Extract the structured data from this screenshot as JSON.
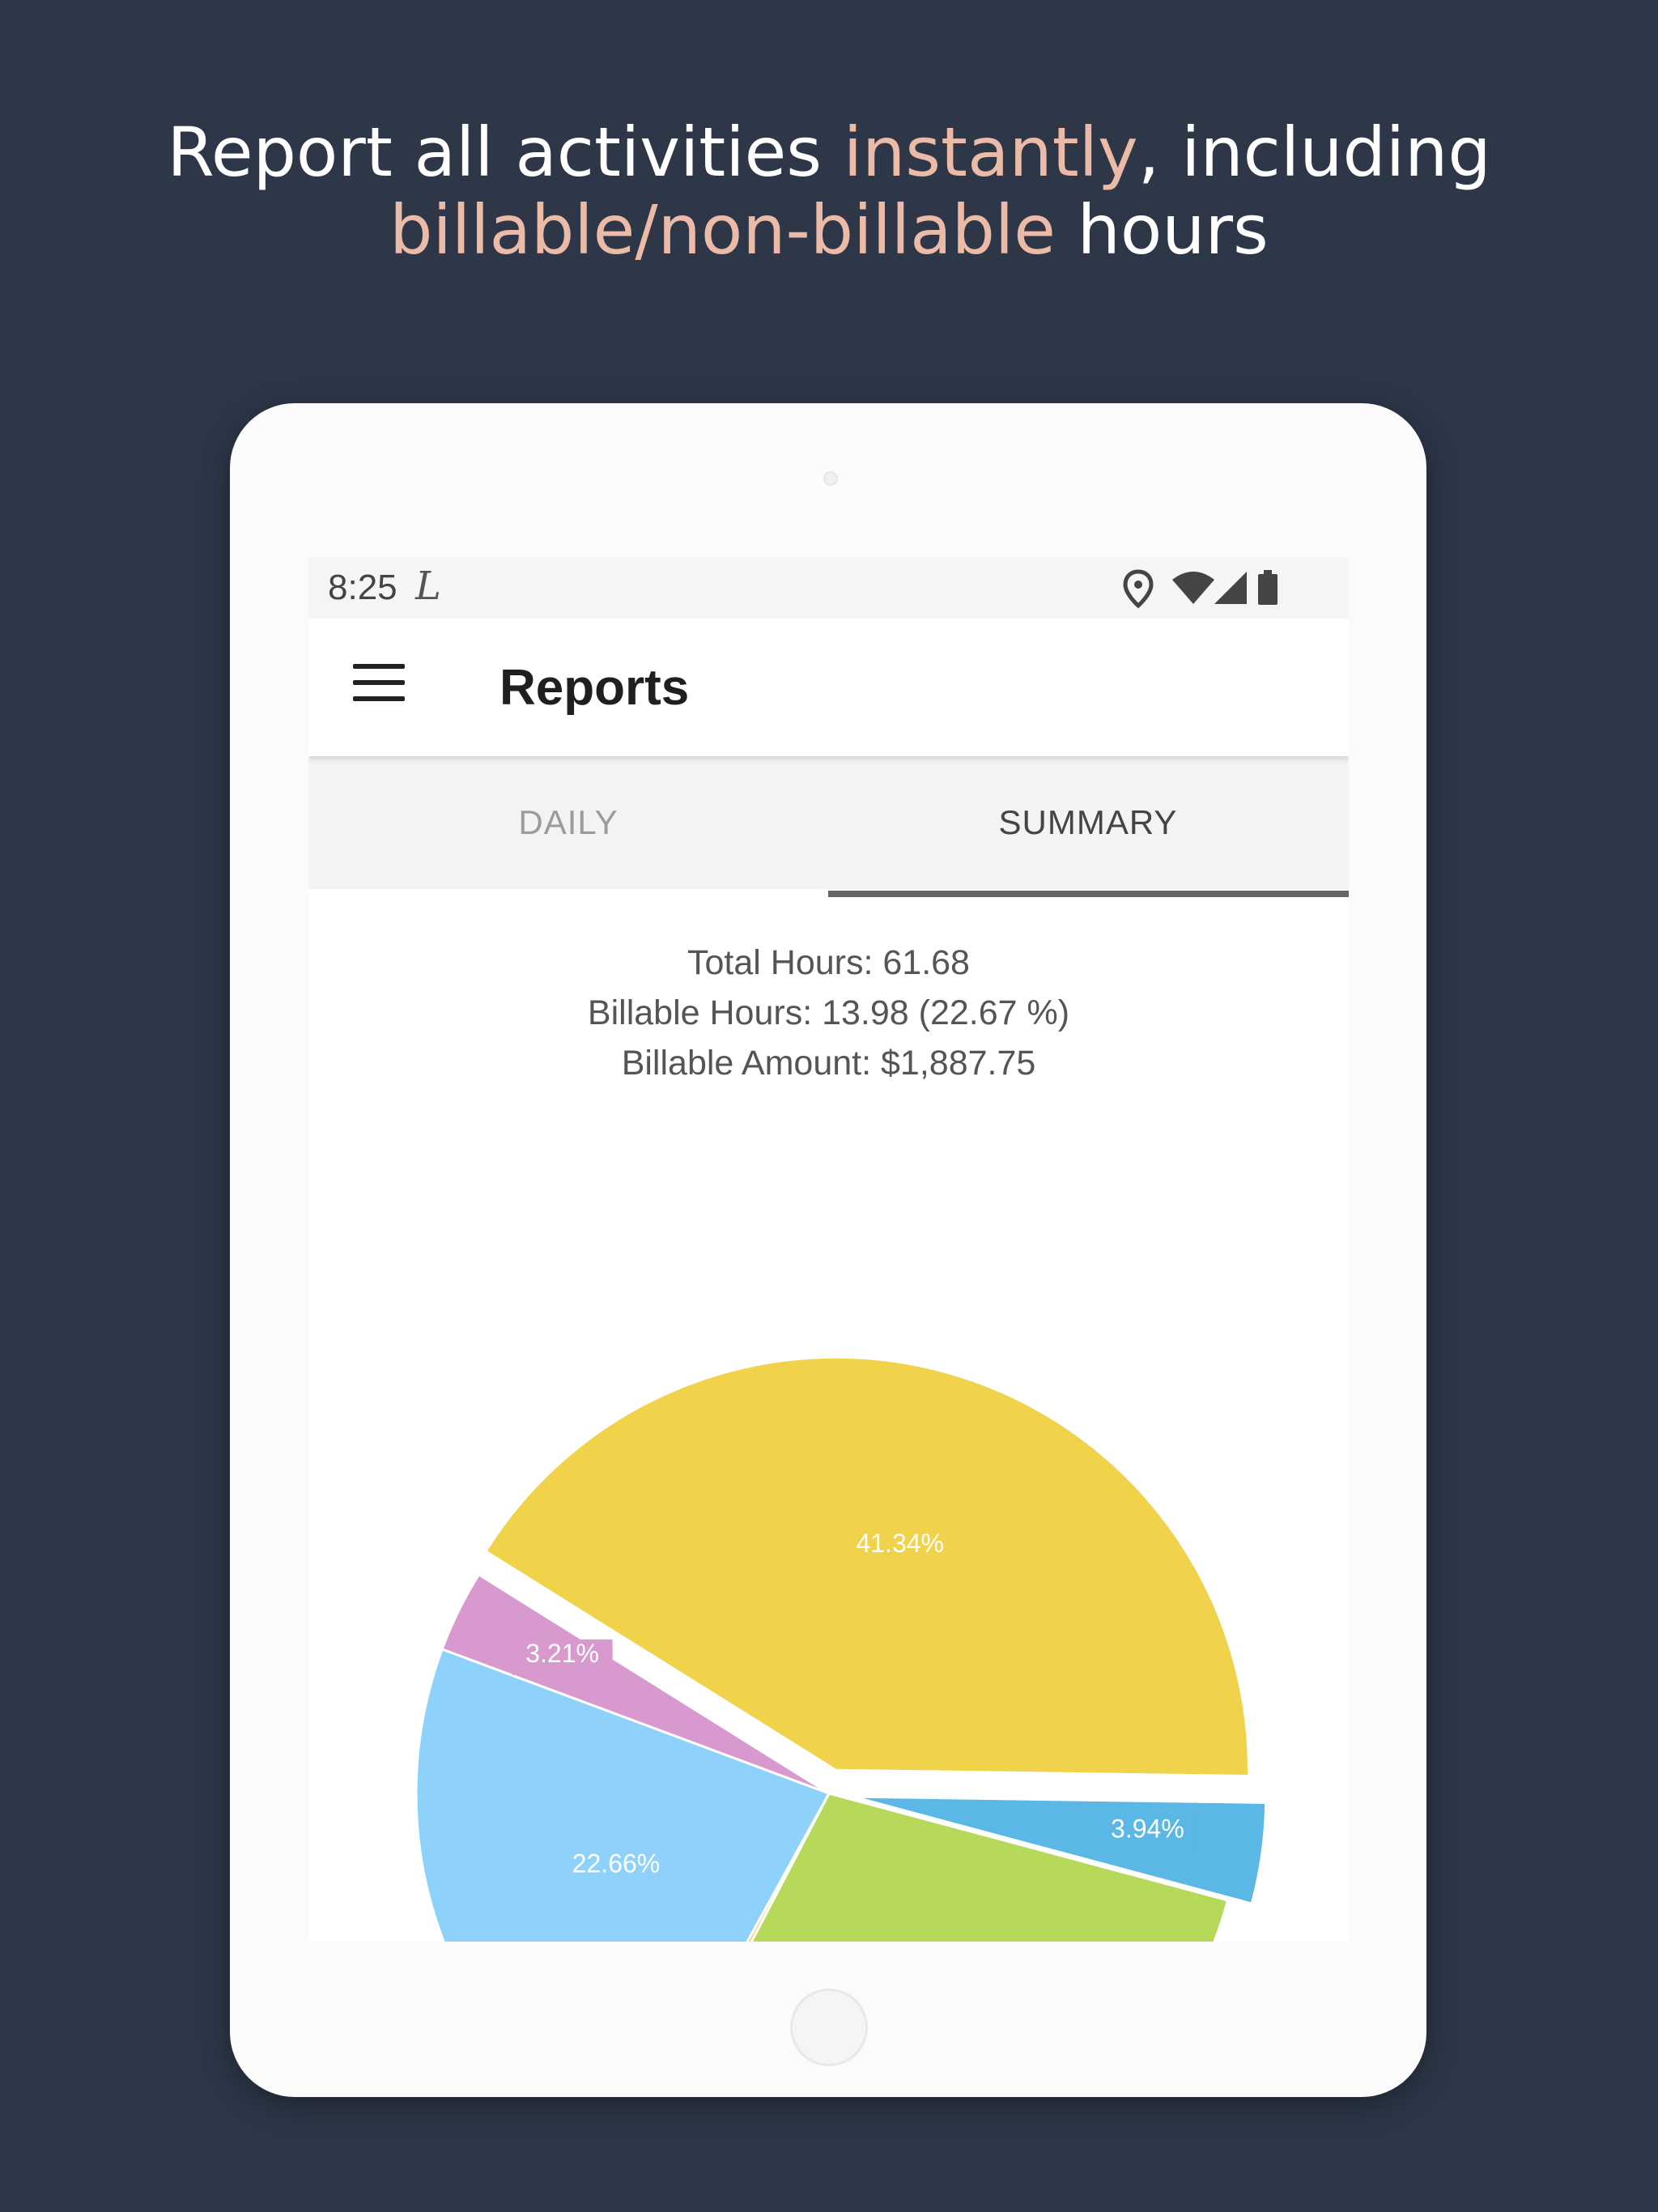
{
  "headline": {
    "line1_a": "Report all activities ",
    "line1_hl": "instantly",
    "line1_b": ", including",
    "line2_hl": "billable/non-billable",
    "line2_b": " hours"
  },
  "status_bar": {
    "time": "8:25",
    "app_icon": "L",
    "icons": [
      "location-icon",
      "wifi-icon",
      "signal-icon",
      "battery-icon"
    ]
  },
  "app_bar": {
    "title": "Reports",
    "menu_icon": "hamburger-icon"
  },
  "tabs": [
    {
      "label": "DAILY",
      "selected": false
    },
    {
      "label": "SUMMARY",
      "selected": true
    }
  ],
  "summary": {
    "total_hours": "Total Hours: 61.68",
    "billable_hours": "Billable Hours: 13.98 (22.67 %)",
    "billable_amount": "Billable Amount: $1,887.75"
  },
  "colors": {
    "background": "#2d3748",
    "highlight": "#ebbba8",
    "yellow": "#f0d24b",
    "pink": "#d799ce",
    "light_blue": "#8ed2fc",
    "orange": "#f7c56a",
    "green": "#b7d95a",
    "blue": "#5ab7e6"
  },
  "chart_data": {
    "type": "pie",
    "slices": [
      {
        "label": "41.34%",
        "value": 41.34,
        "color": "#f0d24b",
        "exploded": true
      },
      {
        "label": "3.94%",
        "value": 3.94,
        "color": "#5ab7e6",
        "exploded": true
      },
      {
        "label": "",
        "value": 28.5,
        "color": "#b7d95a",
        "exploded": false
      },
      {
        "label": "",
        "value": 0.35,
        "color": "#f7c56a",
        "exploded": false
      },
      {
        "label": "22.66%",
        "value": 22.66,
        "color": "#8ed2fc",
        "exploded": false
      },
      {
        "label": "3.21%",
        "value": 3.21,
        "color": "#d799ce",
        "exploded": false
      }
    ]
  }
}
